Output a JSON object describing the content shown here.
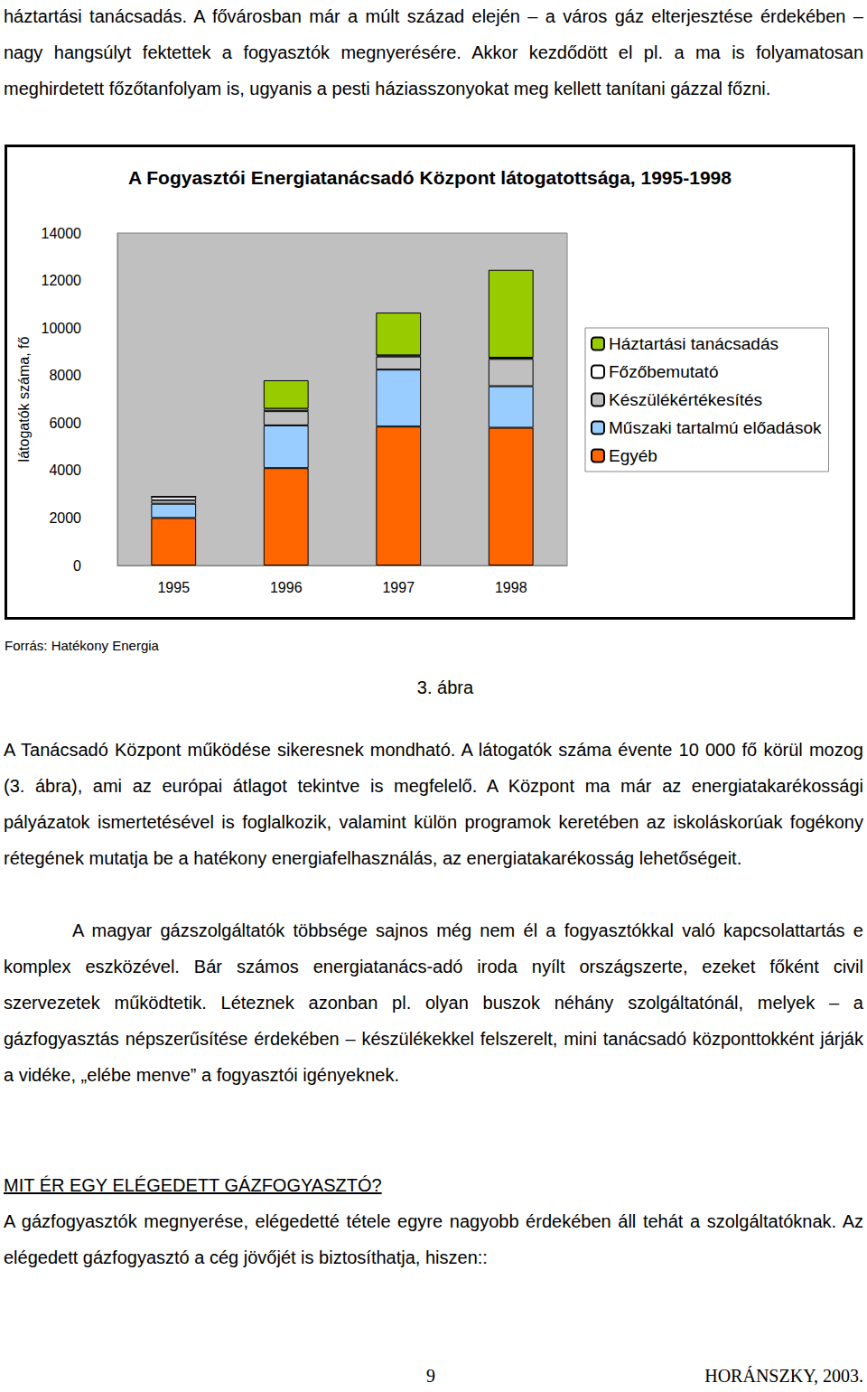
{
  "paragraph_top": "háztartási tanácsadás. A fővárosban már a múlt század elején – a város gáz elterjesztése érdekében – nagy hangsúlyt fektettek a fogyasztók megnyerésére. Akkor kezdődött el pl. a ma is folyamatosan meghirdetett főzőtanfolyam is, ugyanis a pesti háziasszonyokat meg kellett tanítani gázzal főzni.",
  "chart_data": {
    "type": "bar",
    "title": "A Fogyasztói Energiatanácsadó Központ látogatottsága, 1995-1998",
    "y_label": "látogatók száma, fő",
    "stacked": true,
    "grid": false,
    "legend": "right",
    "categories": [
      "1995",
      "1996",
      "1997",
      "1998"
    ],
    "series": [
      {
        "name": "Egyéb",
        "color": "#ff6600",
        "values": [
          2000,
          4100,
          5850,
          5800
        ]
      },
      {
        "name": "Műszaki tartalmú előadások",
        "color": "#99ccff",
        "values": [
          600,
          1800,
          2400,
          1750
        ]
      },
      {
        "name": "Készülékértékesítés",
        "color": "#c0c0c0",
        "values": [
          150,
          600,
          550,
          1150
        ]
      },
      {
        "name": "Főzőbemutató",
        "color": "#ffffff",
        "values": [
          150,
          100,
          50,
          50
        ]
      },
      {
        "name": "Háztartási tanácsadás",
        "color": "#99cc00",
        "values": [
          0,
          1200,
          1800,
          3700
        ]
      }
    ],
    "ylim": [
      0,
      14000
    ],
    "yticks": [
      0,
      2000,
      4000,
      6000,
      8000,
      10000,
      12000,
      14000
    ]
  },
  "source": "Forrás: Hatékony Energia",
  "caption": "3. ábra",
  "paragraphs": [
    "A Tanácsadó Központ működése sikeresnek mondható. A látogatók száma évente 10 000 fő körül mozog (3. ábra), ami az európai átlagot tekintve is megfelelő. A Központ ma már az energiatakarékossági pályázatok ismertetésével is foglalkozik, valamint külön programok keretében az iskoláskorúak fogékony rétegének mutatja be a hatékony energiafelhasználás, az energiatakarékosság lehetőségeit.",
    "A magyar gázszolgáltatók többsége sajnos még nem él a fogyasztókkal való kapcsolattartás e komplex eszközével. Bár számos energiatanács-adó iroda nyílt országszerte, ezeket főként civil szervezetek működtetik. Léteznek azonban pl. olyan buszok néhány szolgáltatónál, melyek – a gázfogyasztás népszerűsítése érdekében – készülékekkel felszerelt, mini tanácsadó központtokként járják a vidéke, „elébe menve” a fogyasztói igényeknek."
  ],
  "heading": "MIT ÉR EGY ELÉGEDETT GÁZFOGYASZTÓ?",
  "paragraph_last": "A gázfogyasztók megnyerése, elégedetté tétele egyre nagyobb érdekében áll tehát a szolgáltatóknak. Az elégedett gázfogyasztó a cég jövőjét is biztosíthatja, hiszen::",
  "footer": {
    "page": "9",
    "author": "HORÁNSZKY, 2003."
  }
}
